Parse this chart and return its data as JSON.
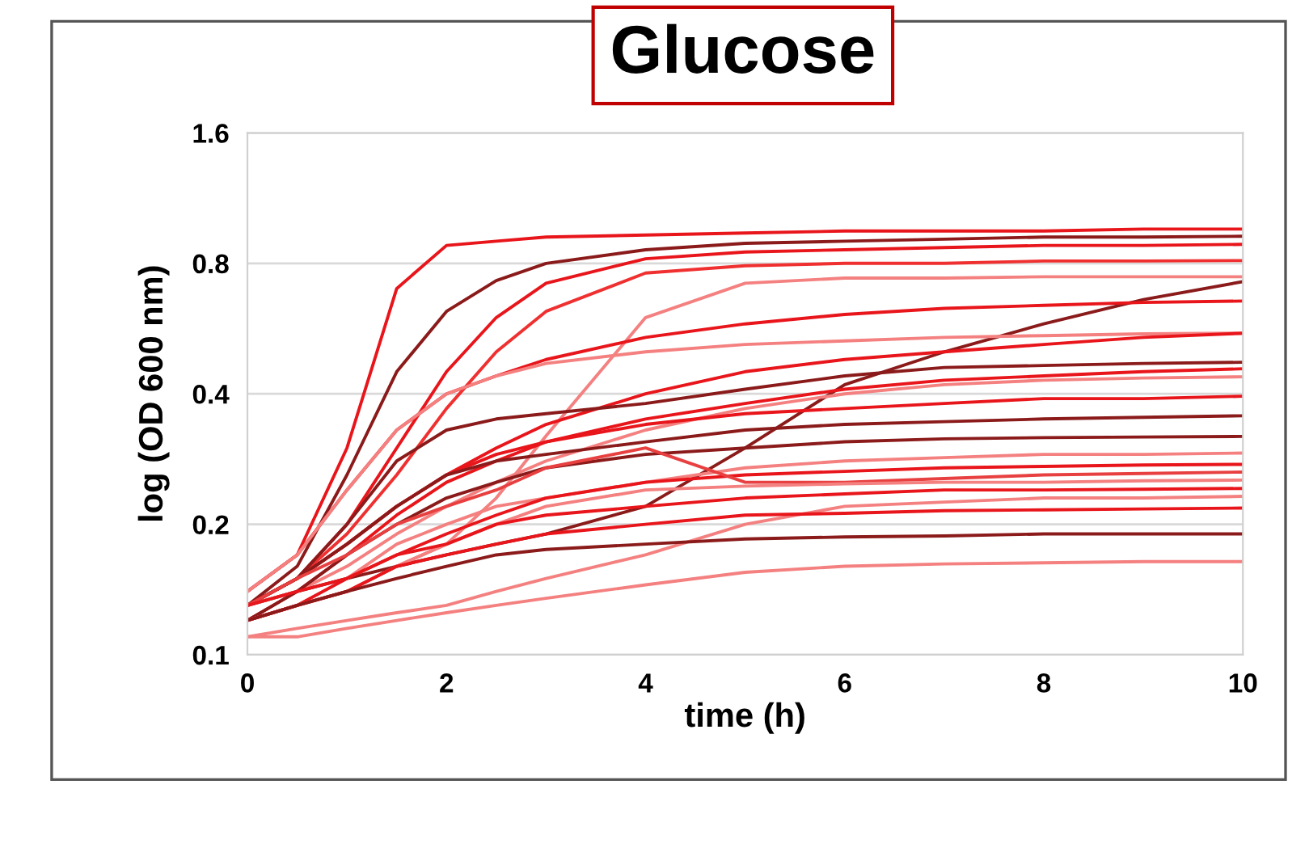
{
  "chart_data": {
    "type": "line",
    "title": "Glucose",
    "xlabel": "time (h)",
    "ylabel": "log (OD 600 nm)",
    "log": "y",
    "grid": "y",
    "xlim": [
      0,
      10
    ],
    "xticks": [
      0,
      2,
      4,
      6,
      8,
      10
    ],
    "ylim": [
      0.1,
      1.6
    ],
    "yticks": [
      0.1,
      0.2,
      0.4,
      0.8,
      1.6
    ],
    "x": [
      0,
      0.5,
      1,
      1.5,
      2,
      2.5,
      3,
      4,
      5,
      6,
      7,
      8,
      9,
      10
    ],
    "series": [
      {
        "color": "#e8151b",
        "values": [
          0.14,
          0.17,
          0.3,
          0.7,
          0.88,
          0.9,
          0.92,
          0.93,
          0.94,
          0.95,
          0.95,
          0.95,
          0.96,
          0.96
        ]
      },
      {
        "color": "#8b1a1a",
        "values": [
          0.13,
          0.16,
          0.26,
          0.45,
          0.62,
          0.73,
          0.8,
          0.86,
          0.89,
          0.9,
          0.91,
          0.92,
          0.92,
          0.924
        ]
      },
      {
        "color": "#e8151b",
        "values": [
          0.13,
          0.15,
          0.2,
          0.3,
          0.45,
          0.6,
          0.72,
          0.82,
          0.85,
          0.86,
          0.87,
          0.88,
          0.88,
          0.885
        ]
      },
      {
        "color": "#f03030",
        "values": [
          0.13,
          0.15,
          0.19,
          0.26,
          0.37,
          0.5,
          0.62,
          0.76,
          0.79,
          0.8,
          0.8,
          0.81,
          0.81,
          0.812
        ]
      },
      {
        "color": "#f48080",
        "values": [
          0.12,
          0.13,
          0.14,
          0.16,
          0.18,
          0.23,
          0.32,
          0.6,
          0.72,
          0.74,
          0.74,
          0.745,
          0.745,
          0.745
        ]
      },
      {
        "color": "#8b1a1a",
        "values": [
          0.13,
          0.14,
          0.15,
          0.16,
          0.17,
          0.18,
          0.19,
          0.22,
          0.3,
          0.42,
          0.5,
          0.58,
          0.66,
          0.726
        ]
      },
      {
        "color": "#e8151b",
        "values": [
          0.14,
          0.17,
          0.24,
          0.33,
          0.4,
          0.44,
          0.48,
          0.54,
          0.58,
          0.61,
          0.63,
          0.64,
          0.65,
          0.655
        ]
      },
      {
        "color": "#f48080",
        "values": [
          0.14,
          0.17,
          0.24,
          0.33,
          0.4,
          0.44,
          0.47,
          0.5,
          0.52,
          0.53,
          0.54,
          0.545,
          0.55,
          0.552
        ]
      },
      {
        "color": "#e8151b",
        "values": [
          0.13,
          0.15,
          0.18,
          0.22,
          0.26,
          0.3,
          0.34,
          0.4,
          0.45,
          0.48,
          0.5,
          0.52,
          0.54,
          0.552
        ]
      },
      {
        "color": "#8b1a1a",
        "values": [
          0.13,
          0.15,
          0.2,
          0.28,
          0.33,
          0.35,
          0.36,
          0.38,
          0.41,
          0.44,
          0.46,
          0.465,
          0.47,
          0.473
        ]
      },
      {
        "color": "#e8151b",
        "values": [
          0.12,
          0.14,
          0.17,
          0.21,
          0.25,
          0.28,
          0.31,
          0.35,
          0.38,
          0.41,
          0.43,
          0.44,
          0.45,
          0.457
        ]
      },
      {
        "color": "#f48080",
        "values": [
          0.13,
          0.14,
          0.16,
          0.19,
          0.22,
          0.25,
          0.28,
          0.33,
          0.37,
          0.4,
          0.42,
          0.43,
          0.435,
          0.438
        ]
      },
      {
        "color": "#e8151b",
        "values": [
          0.13,
          0.15,
          0.18,
          0.22,
          0.26,
          0.29,
          0.31,
          0.34,
          0.36,
          0.37,
          0.38,
          0.39,
          0.39,
          0.395
        ]
      },
      {
        "color": "#8b1a1a",
        "values": [
          0.13,
          0.15,
          0.18,
          0.22,
          0.26,
          0.28,
          0.29,
          0.31,
          0.33,
          0.34,
          0.345,
          0.35,
          0.353,
          0.356
        ]
      },
      {
        "color": "#8b1a1a",
        "values": [
          0.12,
          0.14,
          0.17,
          0.2,
          0.23,
          0.25,
          0.27,
          0.29,
          0.3,
          0.31,
          0.315,
          0.317,
          0.318,
          0.319
        ]
      },
      {
        "color": "#f48080",
        "values": [
          0.12,
          0.13,
          0.15,
          0.18,
          0.2,
          0.22,
          0.23,
          0.25,
          0.27,
          0.28,
          0.285,
          0.29,
          0.29,
          0.292
        ]
      },
      {
        "color": "#e8151b",
        "values": [
          0.12,
          0.13,
          0.15,
          0.17,
          0.19,
          0.21,
          0.23,
          0.25,
          0.26,
          0.265,
          0.27,
          0.272,
          0.274,
          0.275
        ]
      },
      {
        "color": "#e84040",
        "values": [
          0.13,
          0.15,
          0.17,
          0.2,
          0.22,
          0.24,
          0.27,
          0.3,
          0.25,
          0.25,
          0.255,
          0.26,
          0.262,
          0.264
        ]
      },
      {
        "color": "#f48080",
        "values": [
          0.12,
          0.13,
          0.14,
          0.16,
          0.18,
          0.2,
          0.22,
          0.24,
          0.245,
          0.248,
          0.25,
          0.25,
          0.252,
          0.253
        ]
      },
      {
        "color": "#e8151b",
        "values": [
          0.13,
          0.14,
          0.15,
          0.17,
          0.18,
          0.2,
          0.21,
          0.22,
          0.23,
          0.235,
          0.24,
          0.24,
          0.241,
          0.242
        ]
      },
      {
        "color": "#f48080",
        "values": [
          0.11,
          0.115,
          0.12,
          0.125,
          0.13,
          0.14,
          0.15,
          0.17,
          0.2,
          0.22,
          0.225,
          0.23,
          0.23,
          0.232
        ]
      },
      {
        "color": "#e8151b",
        "values": [
          0.12,
          0.13,
          0.14,
          0.16,
          0.17,
          0.18,
          0.19,
          0.2,
          0.21,
          0.212,
          0.215,
          0.216,
          0.217,
          0.218
        ]
      },
      {
        "color": "#8b1a1a",
        "values": [
          0.12,
          0.13,
          0.14,
          0.15,
          0.16,
          0.17,
          0.175,
          0.18,
          0.185,
          0.187,
          0.188,
          0.19,
          0.19,
          0.19
        ]
      },
      {
        "color": "#f48080",
        "values": [
          0.11,
          0.11,
          0.115,
          0.12,
          0.125,
          0.13,
          0.135,
          0.145,
          0.155,
          0.16,
          0.162,
          0.163,
          0.164,
          0.164
        ]
      }
    ]
  }
}
